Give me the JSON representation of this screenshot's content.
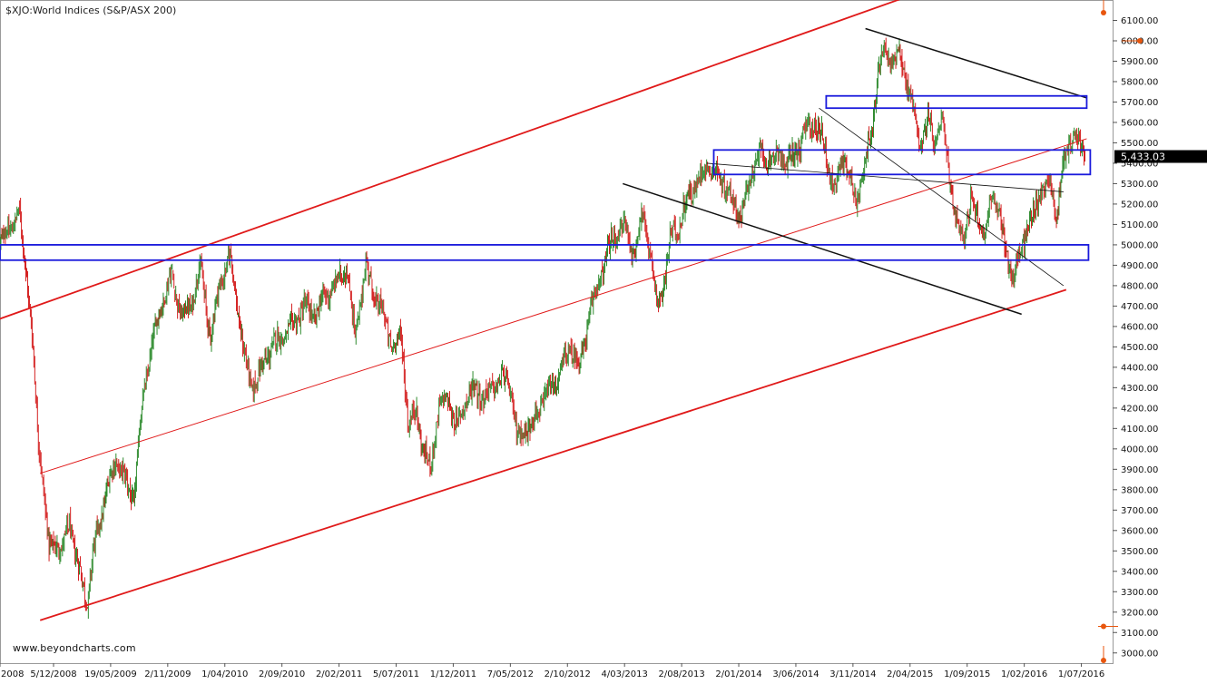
{
  "chart_data": {
    "type": "candlestick",
    "title": "$XJO:World Indices (S&P/ASX 200)",
    "watermark": "www.beyondcharts.com",
    "last_price_label": "5,433.03",
    "ylim": [
      2950,
      6200
    ],
    "y_ticks": [
      3000,
      3100,
      3200,
      3300,
      3400,
      3500,
      3600,
      3700,
      3800,
      3900,
      4000,
      4100,
      4200,
      4300,
      4400,
      4500,
      4600,
      4700,
      4800,
      4900,
      5000,
      5100,
      5200,
      5300,
      5400,
      5500,
      5600,
      5700,
      5800,
      5900,
      6000,
      6100
    ],
    "y_tick_labels": [
      "3000.00",
      "3100.00",
      "3200.00",
      "3300.00",
      "3400.00",
      "3500.00",
      "3600.00",
      "3700.00",
      "3800.00",
      "3900.00",
      "4000.00",
      "4100.00",
      "4200.00",
      "4300.00",
      "4400.00",
      "4500.00",
      "4600.00",
      "4700.00",
      "4800.00",
      "4900.00",
      "5000.00",
      "5100.00",
      "5200.00",
      "5300.00",
      "5400.00",
      "5500.00",
      "5600.00",
      "5700.00",
      "5800.00",
      "5900.00",
      "6000.00",
      "6100.00"
    ],
    "x_tick_labels": [
      "2008",
      "5/12/2008",
      "19/05/2009",
      "2/11/2009",
      "1/04/2010",
      "2/09/2010",
      "2/02/2011",
      "5/07/2011",
      "1/12/2011",
      "7/05/2012",
      "2/10/2012",
      "4/03/2013",
      "2/08/2013",
      "2/01/2014",
      "3/06/2014",
      "3/11/2014",
      "2/04/2015",
      "1/09/2015",
      "1/02/2016",
      "1/07/2016"
    ],
    "x_tick_index": [
      0,
      60,
      124,
      188,
      252,
      316,
      380,
      444,
      508,
      572,
      636,
      700,
      764,
      828,
      892,
      956,
      1020,
      1084,
      1148,
      1212
    ],
    "x_range_index": [
      0,
      1245
    ],
    "colors": {
      "up": "#2e8b2e",
      "down": "#d42020",
      "channel": "#e01a1a",
      "trend": "#111111",
      "zone": "#1a1adc",
      "price_tag_bg": "#000000",
      "price_tag_text": "#ffffff",
      "marker": "#e8560e"
    },
    "series": [
      {
        "t": 0,
        "v": 5000
      },
      {
        "t": 10,
        "v": 5080
      },
      {
        "t": 22,
        "v": 5150
      },
      {
        "t": 30,
        "v": 4850
      },
      {
        "t": 36,
        "v": 4550
      },
      {
        "t": 42,
        "v": 4100
      },
      {
        "t": 48,
        "v": 3850
      },
      {
        "t": 55,
        "v": 3500
      },
      {
        "t": 62,
        "v": 3550
      },
      {
        "t": 70,
        "v": 3500
      },
      {
        "t": 78,
        "v": 3650
      },
      {
        "t": 86,
        "v": 3450
      },
      {
        "t": 92,
        "v": 3350
      },
      {
        "t": 98,
        "v": 3250
      },
      {
        "t": 104,
        "v": 3480
      },
      {
        "t": 112,
        "v": 3650
      },
      {
        "t": 120,
        "v": 3800
      },
      {
        "t": 130,
        "v": 3950
      },
      {
        "t": 140,
        "v": 3850
      },
      {
        "t": 150,
        "v": 3750
      },
      {
        "t": 160,
        "v": 4250
      },
      {
        "t": 170,
        "v": 4500
      },
      {
        "t": 180,
        "v": 4700
      },
      {
        "t": 192,
        "v": 4850
      },
      {
        "t": 204,
        "v": 4650
      },
      {
        "t": 214,
        "v": 4700
      },
      {
        "t": 224,
        "v": 4900
      },
      {
        "t": 236,
        "v": 4550
      },
      {
        "t": 246,
        "v": 4800
      },
      {
        "t": 258,
        "v": 4950
      },
      {
        "t": 266,
        "v": 4700
      },
      {
        "t": 274,
        "v": 4450
      },
      {
        "t": 282,
        "v": 4300
      },
      {
        "t": 294,
        "v": 4400
      },
      {
        "t": 304,
        "v": 4500
      },
      {
        "t": 316,
        "v": 4550
      },
      {
        "t": 328,
        "v": 4600
      },
      {
        "t": 340,
        "v": 4700
      },
      {
        "t": 352,
        "v": 4650
      },
      {
        "t": 364,
        "v": 4750
      },
      {
        "t": 376,
        "v": 4800
      },
      {
        "t": 388,
        "v": 4900
      },
      {
        "t": 398,
        "v": 4550
      },
      {
        "t": 410,
        "v": 4900
      },
      {
        "t": 420,
        "v": 4750
      },
      {
        "t": 430,
        "v": 4650
      },
      {
        "t": 440,
        "v": 4500
      },
      {
        "t": 450,
        "v": 4550
      },
      {
        "t": 458,
        "v": 4100
      },
      {
        "t": 466,
        "v": 4200
      },
      {
        "t": 474,
        "v": 4000
      },
      {
        "t": 482,
        "v": 3900
      },
      {
        "t": 492,
        "v": 4200
      },
      {
        "t": 502,
        "v": 4250
      },
      {
        "t": 512,
        "v": 4100
      },
      {
        "t": 522,
        "v": 4250
      },
      {
        "t": 532,
        "v": 4300
      },
      {
        "t": 542,
        "v": 4250
      },
      {
        "t": 552,
        "v": 4300
      },
      {
        "t": 562,
        "v": 4350
      },
      {
        "t": 572,
        "v": 4300
      },
      {
        "t": 580,
        "v": 4050
      },
      {
        "t": 590,
        "v": 4100
      },
      {
        "t": 600,
        "v": 4150
      },
      {
        "t": 610,
        "v": 4250
      },
      {
        "t": 620,
        "v": 4300
      },
      {
        "t": 630,
        "v": 4400
      },
      {
        "t": 640,
        "v": 4500
      },
      {
        "t": 650,
        "v": 4400
      },
      {
        "t": 660,
        "v": 4650
      },
      {
        "t": 670,
        "v": 4800
      },
      {
        "t": 680,
        "v": 4950
      },
      {
        "t": 690,
        "v": 5050
      },
      {
        "t": 700,
        "v": 5100
      },
      {
        "t": 710,
        "v": 4950
      },
      {
        "t": 720,
        "v": 5150
      },
      {
        "t": 728,
        "v": 5000
      },
      {
        "t": 736,
        "v": 4700
      },
      {
        "t": 744,
        "v": 4800
      },
      {
        "t": 752,
        "v": 5050
      },
      {
        "t": 762,
        "v": 5100
      },
      {
        "t": 772,
        "v": 5250
      },
      {
        "t": 782,
        "v": 5300
      },
      {
        "t": 792,
        "v": 5400
      },
      {
        "t": 802,
        "v": 5350
      },
      {
        "t": 812,
        "v": 5300
      },
      {
        "t": 822,
        "v": 5200
      },
      {
        "t": 832,
        "v": 5150
      },
      {
        "t": 842,
        "v": 5350
      },
      {
        "t": 852,
        "v": 5450
      },
      {
        "t": 862,
        "v": 5400
      },
      {
        "t": 872,
        "v": 5450
      },
      {
        "t": 882,
        "v": 5400
      },
      {
        "t": 892,
        "v": 5450
      },
      {
        "t": 902,
        "v": 5550
      },
      {
        "t": 912,
        "v": 5600
      },
      {
        "t": 920,
        "v": 5550
      },
      {
        "t": 928,
        "v": 5400
      },
      {
        "t": 936,
        "v": 5250
      },
      {
        "t": 944,
        "v": 5450
      },
      {
        "t": 952,
        "v": 5350
      },
      {
        "t": 960,
        "v": 5200
      },
      {
        "t": 968,
        "v": 5400
      },
      {
        "t": 976,
        "v": 5500
      },
      {
        "t": 984,
        "v": 5850
      },
      {
        "t": 992,
        "v": 5950
      },
      {
        "t": 1000,
        "v": 5900
      },
      {
        "t": 1008,
        "v": 5950
      },
      {
        "t": 1016,
        "v": 5800
      },
      {
        "t": 1024,
        "v": 5650
      },
      {
        "t": 1032,
        "v": 5500
      },
      {
        "t": 1040,
        "v": 5600
      },
      {
        "t": 1048,
        "v": 5500
      },
      {
        "t": 1056,
        "v": 5600
      },
      {
        "t": 1064,
        "v": 5350
      },
      {
        "t": 1072,
        "v": 5100
      },
      {
        "t": 1080,
        "v": 5050
      },
      {
        "t": 1088,
        "v": 5200
      },
      {
        "t": 1096,
        "v": 5150
      },
      {
        "t": 1104,
        "v": 5050
      },
      {
        "t": 1112,
        "v": 5250
      },
      {
        "t": 1120,
        "v": 5150
      },
      {
        "t": 1128,
        "v": 4950
      },
      {
        "t": 1136,
        "v": 4850
      },
      {
        "t": 1144,
        "v": 4950
      },
      {
        "t": 1152,
        "v": 5100
      },
      {
        "t": 1160,
        "v": 5150
      },
      {
        "t": 1168,
        "v": 5300
      },
      {
        "t": 1176,
        "v": 5300
      },
      {
        "t": 1184,
        "v": 5150
      },
      {
        "t": 1190,
        "v": 5350
      },
      {
        "t": 1198,
        "v": 5500
      },
      {
        "t": 1206,
        "v": 5550
      },
      {
        "t": 1212,
        "v": 5450
      },
      {
        "t": 1216,
        "v": 5433
      }
    ],
    "channel_lines": [
      {
        "name": "channel-upper",
        "from": {
          "t": -5,
          "v": 4630
        },
        "to": {
          "t": 1090,
          "v": 6330
        },
        "width": 1.8
      },
      {
        "name": "channel-middle",
        "from": {
          "t": 45,
          "v": 3880
        },
        "to": {
          "t": 1218,
          "v": 5520
        },
        "width": 1
      },
      {
        "name": "channel-lower",
        "from": {
          "t": 45,
          "v": 3160
        },
        "to": {
          "t": 1195,
          "v": 4780
        },
        "width": 1.8
      }
    ],
    "trend_lines": [
      {
        "name": "trendline-upper",
        "from": {
          "t": 970,
          "v": 6060
        },
        "to": {
          "t": 1218,
          "v": 5720
        },
        "width": 1.5
      },
      {
        "name": "trendline-middle",
        "from": {
          "t": 918,
          "v": 5670
        },
        "to": {
          "t": 1192,
          "v": 4800
        },
        "width": 0.8
      },
      {
        "name": "trendline-lower",
        "from": {
          "t": 698,
          "v": 5300
        },
        "to": {
          "t": 1145,
          "v": 4660
        },
        "width": 1.5
      },
      {
        "name": "trendline-thin",
        "from": {
          "t": 792,
          "v": 5400
        },
        "to": {
          "t": 1192,
          "v": 5260
        },
        "width": 0.8
      }
    ],
    "zones": [
      {
        "name": "zone-5000",
        "t0": 0,
        "t1": 1220,
        "v0": 4925,
        "v1": 5000
      },
      {
        "name": "zone-5400",
        "t0": 800,
        "t1": 1222,
        "v0": 5345,
        "v1": 5465
      },
      {
        "name": "zone-5700",
        "t0": 926,
        "t1": 1218,
        "v0": 5670,
        "v1": 5730
      }
    ]
  }
}
